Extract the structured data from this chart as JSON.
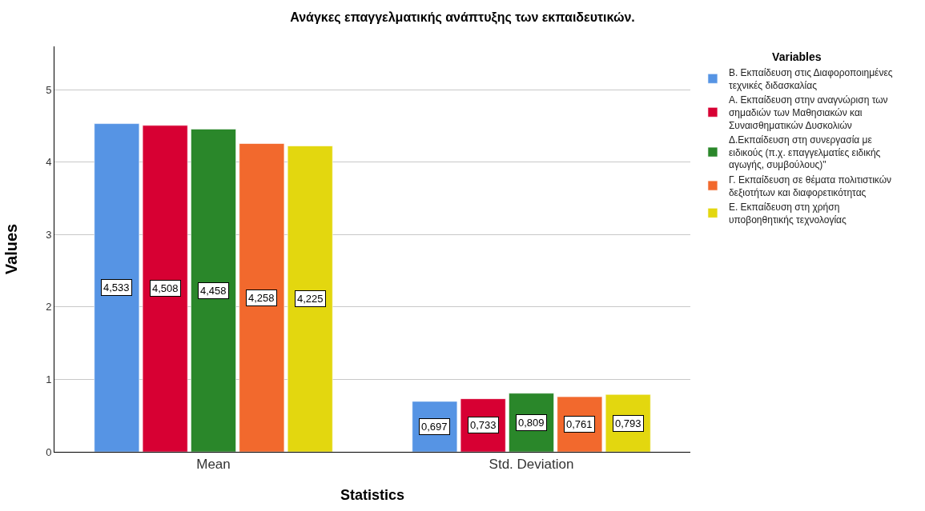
{
  "chart_data": {
    "type": "bar",
    "title": "Ανάγκες επαγγελματικής ανάπτυξης των εκπαιδευτικών.",
    "xlabel": "Statistics",
    "ylabel": "Values",
    "legend_title": "Variables",
    "categories": [
      "Mean",
      "Std. Deviation"
    ],
    "series": [
      {
        "name": "Β. Εκπαίδευση στις Διαφοροποιημένες τεχνικές διδασκαλίας",
        "color": "#5694e4",
        "values": [
          4.533,
          0.697
        ],
        "value_labels": [
          "4,533",
          "0,697"
        ]
      },
      {
        "name": "Α. Εκπαίδευση στην αναγνώριση των σημαδιών των Μαθησιακών και Συναισθηματικών Δυσκολιών",
        "color": "#d70033",
        "values": [
          4.508,
          0.733
        ],
        "value_labels": [
          "4,508",
          "0,733"
        ]
      },
      {
        "name": "Δ.Εκπαίδευση στη συνεργασία με ειδικούς (π.χ. επαγγελματίες ειδικής αγωγής, συμβούλους)\"",
        "color": "#2a872a",
        "values": [
          4.458,
          0.809
        ],
        "value_labels": [
          "4,458",
          "0,809"
        ]
      },
      {
        "name": "Γ. Εκπαίδευση σε θέματα πολιτιστικών δεξιοτήτων και διαφορετικότητας",
        "color": "#f2692d",
        "values": [
          4.258,
          0.761
        ],
        "value_labels": [
          "4,258",
          "0,761"
        ]
      },
      {
        "name": "Ε. Εκπαίδευση στη χρήση υποβοηθητικής τεχνολογίας",
        "color": "#e3d70f",
        "values": [
          4.225,
          0.793
        ],
        "value_labels": [
          "4,225",
          "0,793"
        ]
      }
    ],
    "ylim": [
      0,
      5.6
    ],
    "yticks": [
      0,
      1,
      2,
      3,
      4,
      5
    ],
    "grid": "y",
    "legend": "top right"
  }
}
